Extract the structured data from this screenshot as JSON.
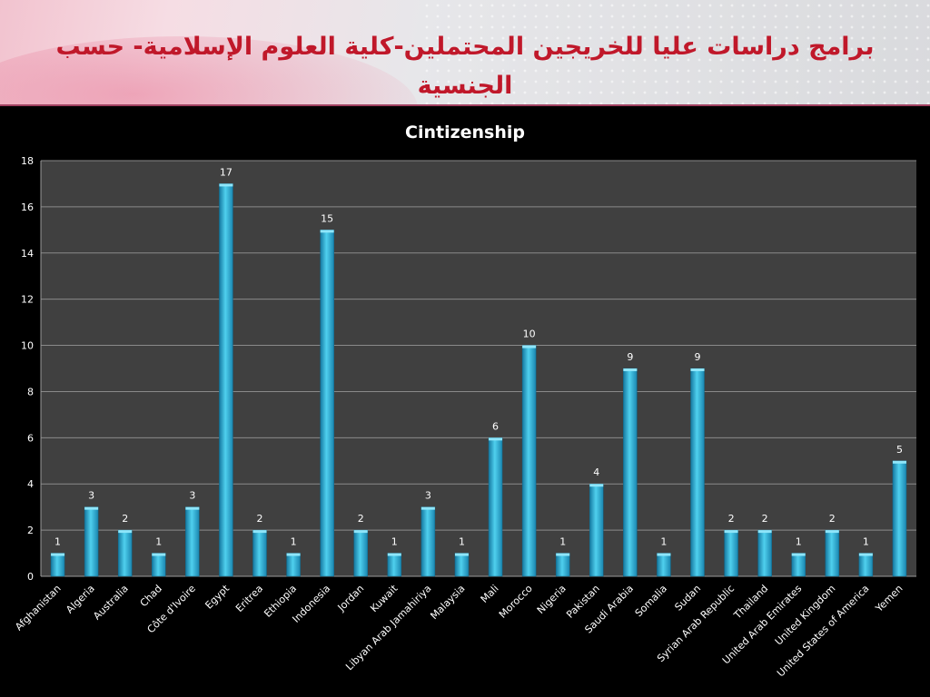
{
  "slide": {
    "title": "برامج دراسات عليا للخريجين المحتملين-كلية العلوم الإسلامية- حسب الجنسية"
  },
  "colors": {
    "title": "#c0182a",
    "plot_background": "#404040",
    "bar_fill": "#2bb5d8",
    "axis_text": "#ffffff"
  },
  "chart_data": {
    "type": "bar",
    "title": "Cintizenship",
    "xlabel": "",
    "ylabel": "",
    "ylim": [
      0,
      18
    ],
    "yticks": [
      0,
      2,
      4,
      6,
      8,
      10,
      12,
      14,
      16,
      18
    ],
    "grid": true,
    "legend": "none",
    "categories": [
      "Afghanistan",
      "Algeria",
      "Australia",
      "Chad",
      "Côte d'Ivoire",
      "Egypt",
      "Eritrea",
      "Ethiopia",
      "Indonesia",
      "Jordan",
      "Kuwait",
      "Libyan Arab Jamahiriya",
      "Malaysia",
      "Mali",
      "Morocco",
      "Nigeria",
      "Pakistan",
      "Saudi Arabia",
      "Somalia",
      "Sudan",
      "Syrian Arab Republic",
      "Thailand",
      "United Arab Emirates",
      "United Kingdom",
      "United States of America",
      "Yemen"
    ],
    "values": [
      1,
      3,
      2,
      1,
      3,
      17,
      2,
      1,
      15,
      2,
      1,
      3,
      1,
      6,
      10,
      1,
      4,
      9,
      1,
      9,
      2,
      2,
      1,
      2,
      1,
      5
    ]
  }
}
